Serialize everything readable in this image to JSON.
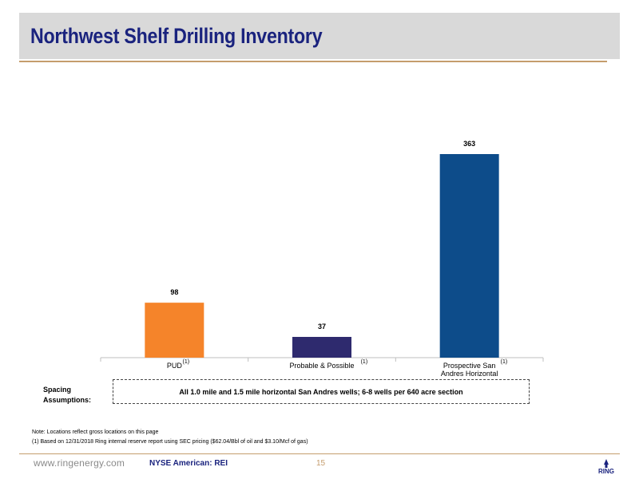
{
  "page": {
    "title": "Northwest Shelf Drilling Inventory"
  },
  "chart_data": {
    "type": "bar",
    "categories": [
      "PUD",
      "Probable & Possible",
      "Prospective San Andres Horizontal"
    ],
    "category_lines": [
      [
        "PUD"
      ],
      [
        "Probable & Possible"
      ],
      [
        "Prospective San",
        "Andres Horizontal"
      ]
    ],
    "category_footnotes": [
      "(1)",
      "(1)",
      "(1)"
    ],
    "values": [
      98,
      37,
      363
    ],
    "data_labels": [
      "98",
      "37",
      "363"
    ],
    "colors": [
      "#f5842a",
      "#2e2a6e",
      "#0d4c8a"
    ],
    "ylim": [
      0,
      363
    ],
    "grid": false,
    "legend": "none"
  },
  "spacing": {
    "label_line1": "Spacing",
    "label_line2": "Assumptions:",
    "text": "All 1.0 mile and 1.5 mile horizontal San Andres wells; 6-8 wells per 640 acre section"
  },
  "notes": {
    "line1": "Note: Locations reflect gross locations on this page",
    "line2": "(1) Based on 12/31/2018 Ring internal reserve report using SEC pricing ($62.04/Bbl of oil and $3.10/Mcf of gas)"
  },
  "footer": {
    "url": "www.ringenergy.com",
    "ticker": "NYSE American: REI",
    "page_number": "15",
    "logo_text": "RING"
  },
  "colors": {
    "title": "#1a237e",
    "accent_rule": "#c59d6d",
    "header_bg": "#d9d9d9"
  }
}
